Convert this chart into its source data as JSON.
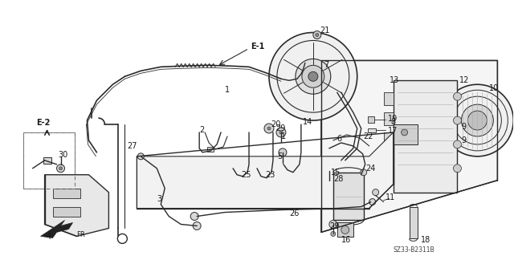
{
  "figsize": [
    6.4,
    3.19
  ],
  "dpi": 100,
  "bg_color": "#ffffff",
  "line_color": "#2a2a2a",
  "label_color": "#1a1a1a",
  "diagram_id": "SZ33-B2311B"
}
